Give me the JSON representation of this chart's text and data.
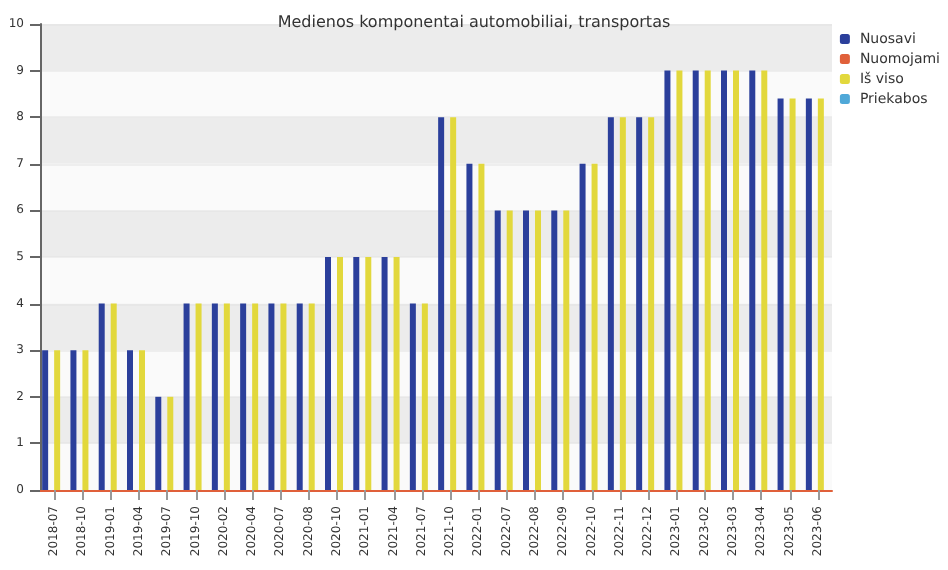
{
  "chart_data": {
    "type": "bar",
    "title": "Medienos komponentai automobiliai, transportas",
    "categories": [
      "2018-07",
      "2018-10",
      "2019-01",
      "2019-04",
      "2019-07",
      "2019-10",
      "2020-02",
      "2020-04",
      "2020-07",
      "2020-08",
      "2020-10",
      "2021-01",
      "2021-04",
      "2021-07",
      "2021-10",
      "2022-01",
      "2022-07",
      "2022-08",
      "2022-09",
      "2022-10",
      "2022-11",
      "2022-12",
      "2023-01",
      "2023-02",
      "2023-03",
      "2023-04",
      "2023-05",
      "2023-06"
    ],
    "series": [
      {
        "name": "Nuosavi",
        "color": "#2b3f9b",
        "values": [
          3,
          3,
          4,
          3,
          2,
          4,
          4,
          4,
          4,
          4,
          5,
          5,
          5,
          4,
          8,
          7,
          6,
          6,
          6,
          7,
          8,
          8,
          9,
          9,
          9,
          9,
          8.4,
          8.4
        ]
      },
      {
        "name": "Nuomojami",
        "color": "#e0603a",
        "values": [
          0,
          0,
          0,
          0,
          0,
          0,
          0,
          0,
          0,
          0,
          0,
          0,
          0,
          0,
          0,
          0,
          0,
          0,
          0,
          0,
          0,
          0,
          0,
          0,
          0,
          0,
          0,
          0
        ]
      },
      {
        "name": "Iš viso",
        "color": "#e2d83c",
        "values": [
          3,
          3,
          4,
          3,
          2,
          4,
          4,
          4,
          4,
          4,
          5,
          5,
          5,
          4,
          8,
          7,
          6,
          6,
          6,
          7,
          8,
          8,
          9,
          9,
          9,
          9,
          8.4,
          8.4
        ]
      },
      {
        "name": "Priekabos",
        "color": "#4fa8d8",
        "values": [
          0,
          0,
          0,
          0,
          0,
          0,
          0,
          0,
          0,
          0,
          0,
          0,
          0,
          0,
          0,
          0,
          0,
          0,
          0,
          0,
          0,
          0,
          0,
          0,
          0,
          0,
          0,
          0
        ]
      }
    ],
    "ylim": [
      0,
      10
    ],
    "yticks": [
      0,
      1,
      2,
      3,
      4,
      5,
      6,
      7,
      8,
      9,
      10
    ],
    "grid": "y",
    "legend": "top right"
  }
}
